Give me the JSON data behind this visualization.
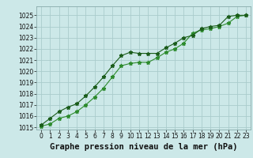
{
  "xlabel": "Graphe pression niveau de la mer (hPa)",
  "ylabel": "",
  "background_color": "#cce8e8",
  "grid_color": "#aacccc",
  "line_color_dark": "#1a5c1a",
  "line_color_light": "#2d8b2d",
  "xlim": [
    -0.5,
    23.5
  ],
  "ylim": [
    1014.8,
    1025.8
  ],
  "yticks": [
    1015,
    1016,
    1017,
    1018,
    1019,
    1020,
    1021,
    1022,
    1023,
    1024,
    1025
  ],
  "xticks": [
    0,
    1,
    2,
    3,
    4,
    5,
    6,
    7,
    8,
    9,
    10,
    11,
    12,
    13,
    14,
    15,
    16,
    17,
    18,
    19,
    20,
    21,
    22,
    23
  ],
  "series1_x": [
    0,
    1,
    2,
    3,
    4,
    5,
    6,
    7,
    8,
    9,
    10,
    11,
    12,
    13,
    14,
    15,
    16,
    17,
    18,
    19,
    20,
    21,
    22,
    23
  ],
  "series1_y": [
    1015.2,
    1015.8,
    1016.4,
    1016.8,
    1017.1,
    1017.8,
    1018.6,
    1019.5,
    1020.5,
    1021.4,
    1021.7,
    1021.6,
    1021.6,
    1021.6,
    1022.1,
    1022.5,
    1023.0,
    1023.2,
    1023.8,
    1024.0,
    1024.1,
    1024.9,
    1025.0,
    1025.0
  ],
  "series2_x": [
    0,
    1,
    2,
    3,
    4,
    5,
    6,
    7,
    8,
    9,
    10,
    11,
    12,
    13,
    14,
    15,
    16,
    17,
    18,
    19,
    20,
    21,
    22,
    23
  ],
  "series2_y": [
    1015.1,
    1015.3,
    1015.8,
    1016.0,
    1016.4,
    1017.0,
    1017.7,
    1018.5,
    1019.5,
    1020.5,
    1020.7,
    1020.8,
    1020.8,
    1021.2,
    1021.7,
    1022.0,
    1022.5,
    1023.4,
    1023.7,
    1023.8,
    1024.0,
    1024.3,
    1024.9,
    1025.0
  ],
  "tick_fontsize": 5.5,
  "xlabel_fontsize": 7.5,
  "marker": "*",
  "marker_size": 3.5,
  "linewidth": 0.8
}
